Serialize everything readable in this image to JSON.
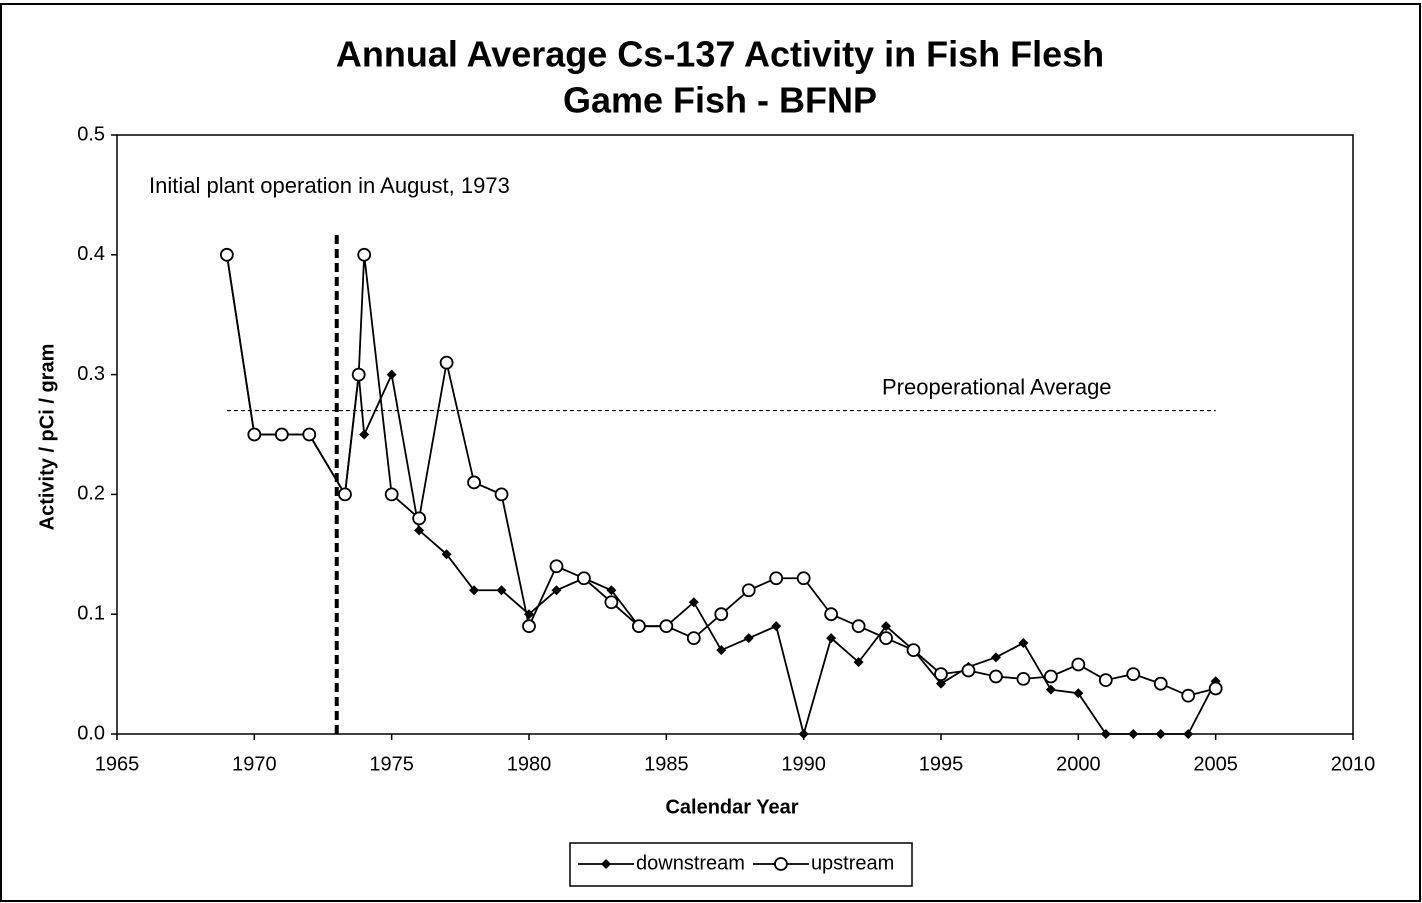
{
  "chart_data": {
    "type": "line",
    "title": "Annual Average Cs-137 Activity in Fish Flesh",
    "subtitle": "Game Fish - BFNP",
    "x_label": "Calendar Year",
    "y_label": "Activity  /  pCi / gram",
    "annotation": "Initial plant operation in August, 1973",
    "operation_line_x": 1973,
    "reference_line": {
      "label": "Preoperational Average",
      "value": 0.27,
      "x_range": [
        1969,
        2005
      ]
    },
    "x": [
      1969,
      1970,
      1971,
      1972,
      1973.3,
      1973.8,
      1974,
      1975,
      1976,
      1977,
      1978,
      1979,
      1980,
      1981,
      1982,
      1983,
      1984,
      1985,
      1986,
      1987,
      1988,
      1989,
      1990,
      1991,
      1992,
      1993,
      1994,
      1995,
      1996,
      1997,
      1998,
      1999,
      2000,
      2001,
      2002,
      2003,
      2004,
      2005
    ],
    "series": [
      {
        "name": "downstream",
        "color": "#000000",
        "marker": "diamond",
        "values": [
          0.4,
          0.25,
          0.25,
          0.25,
          0.2,
          0.3,
          0.25,
          0.3,
          0.17,
          0.15,
          0.12,
          0.12,
          0.1,
          0.12,
          0.13,
          0.12,
          0.09,
          0.09,
          0.11,
          0.07,
          0.08,
          0.09,
          0.0,
          0.08,
          0.06,
          0.09,
          0.07,
          0.042,
          0.056,
          0.064,
          0.076,
          0.037,
          0.034,
          0.0,
          0.0,
          0.0,
          0.0,
          0.044
        ]
      },
      {
        "name": "upstream",
        "color": "#000000",
        "marker": "circle",
        "values": [
          0.4,
          0.25,
          0.25,
          0.25,
          0.2,
          0.3,
          0.4,
          0.2,
          0.18,
          0.31,
          0.21,
          0.2,
          0.09,
          0.14,
          0.13,
          0.11,
          0.09,
          0.09,
          0.08,
          0.1,
          0.12,
          0.13,
          0.13,
          0.1,
          0.09,
          0.08,
          0.07,
          0.05,
          0.053,
          0.048,
          0.046,
          0.048,
          0.058,
          0.045,
          0.05,
          0.042,
          0.032,
          0.038
        ]
      }
    ],
    "xlim": [
      1965,
      2010
    ],
    "xticks": [
      1965,
      1970,
      1975,
      1980,
      1985,
      1990,
      1995,
      2000,
      2005,
      2010
    ],
    "ylim": [
      0,
      0.5
    ],
    "yticks": [
      {
        "value": 0,
        "label": "0.0"
      },
      0.1,
      0.2,
      0.3,
      0.4,
      0.5
    ],
    "legend": "bottom"
  }
}
